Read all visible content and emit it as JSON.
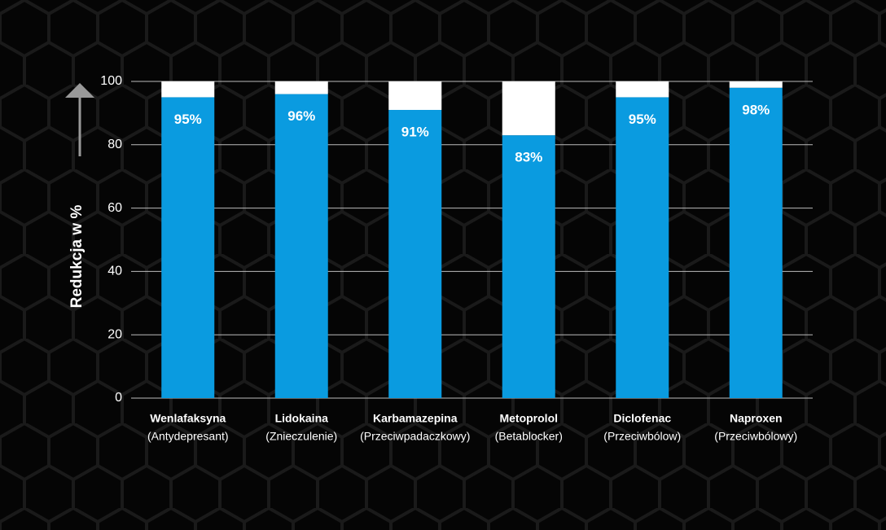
{
  "chart_data": {
    "type": "bar",
    "stacked": true,
    "ylabel": "Redukcja w %",
    "categories": [
      "Wenlafaksyna",
      "Lidokaina",
      "Karbamazepina",
      "Metoprolol",
      "Diclofenac",
      "Naproxen"
    ],
    "category_notes": [
      "(Antydepresant)",
      "(Znieczulenie)",
      "(Przeciwpadaczkowy)",
      "(Betablocker)",
      "(Przeciwbólow)",
      "(Przeciwbólowy)"
    ],
    "series": [
      {
        "color": "#0a9be0",
        "values": [
          95,
          96,
          91,
          83,
          95,
          98
        ],
        "value_labels": [
          "95%",
          "96%",
          "91%",
          "83%",
          "95%",
          "98%"
        ]
      },
      {
        "color": "#ffffff",
        "values": [
          5,
          4,
          9,
          17,
          5,
          2
        ]
      }
    ],
    "ylim": [
      0,
      100
    ],
    "yticks": [
      0,
      20,
      40,
      60,
      80,
      100
    ],
    "grid": true
  }
}
